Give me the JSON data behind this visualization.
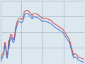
{
  "background_color": "#dde8ee",
  "grid_color": "#aabbcc",
  "line1_color": "#cc3333",
  "line2_color": "#3366cc",
  "xlim": [
    0,
    1
  ],
  "ylim": [
    0,
    1
  ],
  "figsize": [
    1.2,
    0.9
  ],
  "dpi": 100,
  "grid_nx": 4,
  "grid_ny": 4,
  "lw": 0.7
}
